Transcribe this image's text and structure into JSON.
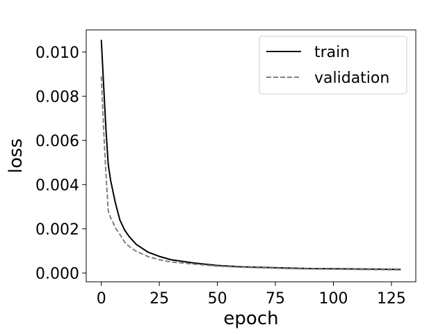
{
  "chart_data": {
    "type": "line",
    "xlabel": "epoch",
    "ylabel": "loss",
    "xlim": [
      -6.5,
      135.5
    ],
    "ylim": [
      -0.0004,
      0.011
    ],
    "xticks": [
      0,
      25,
      50,
      75,
      100,
      125
    ],
    "yticks": [
      0.0,
      0.002,
      0.004,
      0.006,
      0.008,
      0.01
    ],
    "xtick_labels": [
      "0",
      "25",
      "50",
      "75",
      "100",
      "125"
    ],
    "ytick_labels": [
      "0.000",
      "0.002",
      "0.004",
      "0.006",
      "0.008",
      "0.010"
    ],
    "grid": false,
    "legend_position": "top-right",
    "legend": [
      "train",
      "validation"
    ],
    "series": [
      {
        "name": "train",
        "color": "#000000",
        "style": "solid",
        "x": [
          0,
          1,
          2,
          3,
          4,
          5,
          6,
          7,
          8,
          10,
          12,
          15,
          20,
          25,
          30,
          40,
          50,
          60,
          70,
          80,
          90,
          100,
          110,
          120,
          129
        ],
        "y": [
          0.01055,
          0.0085,
          0.0065,
          0.0049,
          0.0042,
          0.0037,
          0.0032,
          0.0028,
          0.0024,
          0.00195,
          0.00165,
          0.0013,
          0.00095,
          0.00075,
          0.0006,
          0.00045,
          0.00034,
          0.00028,
          0.00025,
          0.00022,
          0.0002,
          0.00019,
          0.00018,
          0.00017,
          0.00016
        ]
      },
      {
        "name": "validation",
        "color": "#808080",
        "style": "dashed",
        "x": [
          0,
          1,
          2,
          3,
          4,
          5,
          6,
          7,
          8,
          10,
          12,
          15,
          20,
          25,
          30,
          40,
          50,
          60,
          70,
          80,
          90,
          100,
          110,
          120,
          129
        ],
        "y": [
          0.0089,
          0.0065,
          0.0045,
          0.0028,
          0.0025,
          0.0023,
          0.00205,
          0.0019,
          0.00175,
          0.0014,
          0.0012,
          0.00098,
          0.00075,
          0.0006,
          0.0005,
          0.0004,
          0.00031,
          0.00026,
          0.00023,
          0.0002,
          0.00018,
          0.00017,
          0.00016,
          0.00015,
          0.00014
        ]
      }
    ]
  }
}
